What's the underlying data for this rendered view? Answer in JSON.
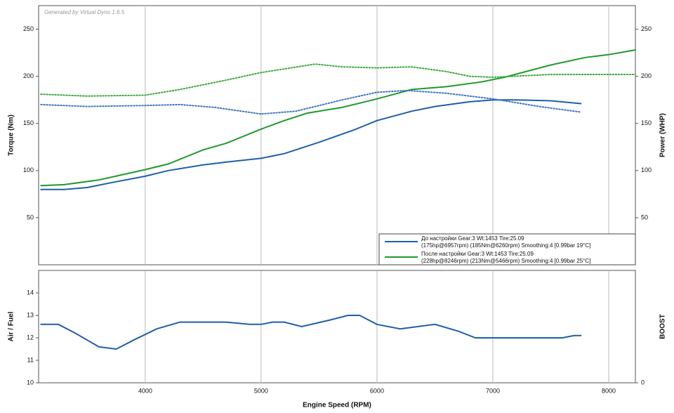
{
  "chart_data": [
    {
      "type": "line",
      "watermark": "Generated by Virtual Dyno 1.6.5",
      "ylabel": "Torque (Nm)",
      "y2label": "Power (WHP)",
      "xlim": [
        3080,
        8230
      ],
      "xticks": [
        4000,
        5000,
        6000,
        7000,
        8000
      ],
      "ylim": [
        0,
        275
      ],
      "yticks": [
        50,
        100,
        150,
        200,
        250
      ],
      "y2lim": [
        0,
        275
      ],
      "y2ticks": [
        50,
        100,
        150,
        200,
        250
      ],
      "grid": true,
      "legend": "lower right",
      "series": [
        {
          "name": "До настройки Gear:3 Wt:1453 Tire:25.09",
          "details": "(175hp@6957rpm) (185Nm@6260rpm) Smoothing:4 [0.99bar 19°C]",
          "color": "#1f5fa8",
          "style": "solid",
          "axis": "y2",
          "x": [
            3100,
            3300,
            3500,
            3700,
            4000,
            4200,
            4500,
            4700,
            5000,
            5200,
            5500,
            5800,
            6000,
            6300,
            6500,
            6800,
            7000,
            7200,
            7500,
            7760
          ],
          "values": [
            80,
            80,
            82,
            87,
            94,
            100,
            106,
            109,
            113,
            118,
            130,
            143,
            153,
            163,
            168,
            173,
            175,
            175,
            174,
            171
          ]
        },
        {
          "name": "После настройки Gear:3 Wt:1453 Tire:25.09",
          "details": "(228hp@8246rpm) (213Nm@5466rpm) Smoothing:4 [0.99bar 25°C]",
          "color": "#1f9a2a",
          "style": "solid",
          "axis": "y2",
          "x": [
            3100,
            3300,
            3600,
            4000,
            4200,
            4500,
            4700,
            5000,
            5200,
            5400,
            5700,
            6000,
            6300,
            6600,
            6900,
            7100,
            7500,
            7800,
            8000,
            8230
          ],
          "values": [
            84,
            85,
            90,
            101,
            107,
            122,
            129,
            144,
            153,
            161,
            167,
            176,
            186,
            189,
            194,
            199,
            212,
            220,
            223,
            228
          ]
        },
        {
          "color": "#3a73c4",
          "style": "dotted",
          "x": [
            3100,
            3500,
            4000,
            4300,
            4600,
            5000,
            5300,
            5700,
            6000,
            6260,
            6600,
            7000,
            7400,
            7760
          ],
          "values": [
            170,
            168,
            169,
            170,
            167,
            160,
            163,
            175,
            183,
            185,
            182,
            176,
            168,
            162
          ]
        },
        {
          "color": "#3aa83a",
          "style": "dotted",
          "x": [
            3100,
            3500,
            4000,
            4300,
            4700,
            5000,
            5466,
            5700,
            6000,
            6300,
            6600,
            6800,
            7000,
            7500,
            8230
          ],
          "values": [
            181,
            179,
            180,
            186,
            196,
            204,
            213,
            210,
            209,
            210,
            205,
            200,
            199,
            202,
            202
          ]
        }
      ]
    },
    {
      "type": "line",
      "ylabel": "Air / Fuel",
      "y2label": "BOOST",
      "xlabel": "Engine Speed (RPM)",
      "xlim": [
        3080,
        8230
      ],
      "xticks": [
        4000,
        5000,
        6000,
        7000,
        8000
      ],
      "ylim": [
        10,
        15
      ],
      "yticks": [
        10,
        11,
        12,
        13,
        14
      ],
      "y2lim": [
        0,
        1
      ],
      "y2ticks": [
        0
      ],
      "grid": true,
      "series": [
        {
          "color": "#1f5fa8",
          "style": "solid",
          "x": [
            3100,
            3250,
            3400,
            3600,
            3750,
            3900,
            4100,
            4300,
            4700,
            4900,
            5000,
            5100,
            5200,
            5350,
            5600,
            5750,
            5850,
            6000,
            6200,
            6500,
            6700,
            6850,
            7000,
            7500,
            7600,
            7700,
            7760
          ],
          "values": [
            12.6,
            12.6,
            12.2,
            11.6,
            11.5,
            11.9,
            12.4,
            12.7,
            12.7,
            12.6,
            12.6,
            12.7,
            12.7,
            12.5,
            12.8,
            13.0,
            13.0,
            12.6,
            12.4,
            12.6,
            12.3,
            12.0,
            12.0,
            12.0,
            12.0,
            12.1,
            12.1
          ]
        }
      ]
    }
  ]
}
